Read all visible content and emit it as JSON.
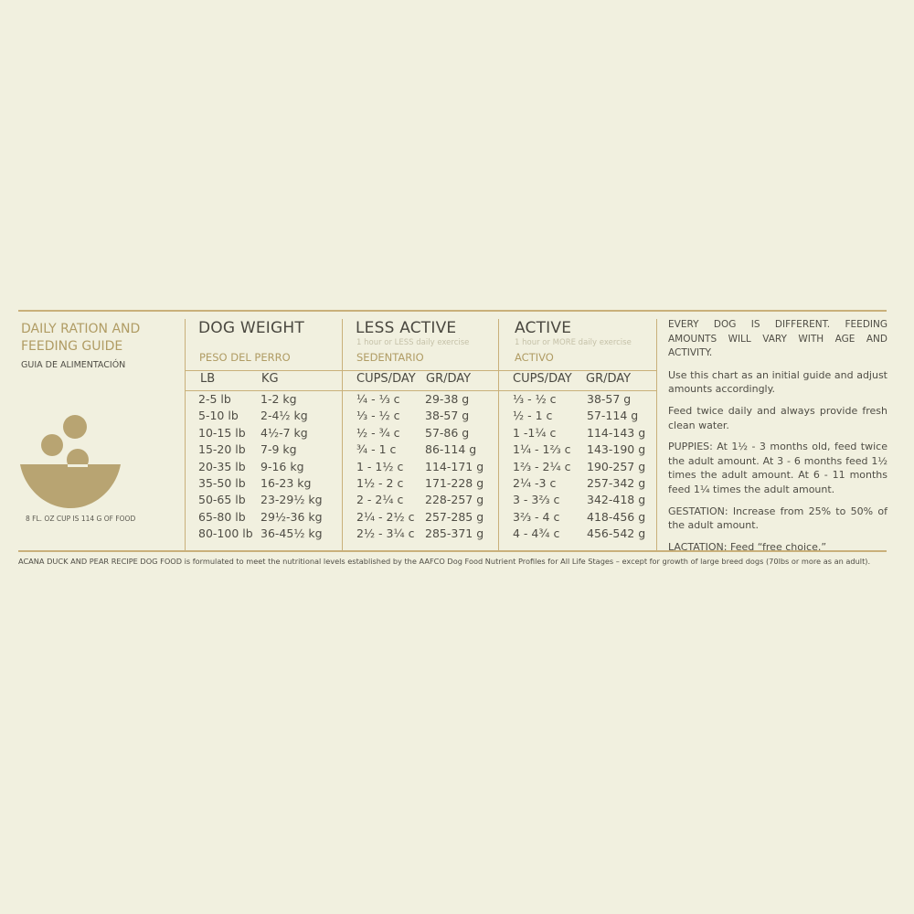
{
  "left": {
    "title": "DAILY RATION AND FEEDING GUIDE",
    "subtitle": "GUIA DE ALIMENTACIÓN",
    "cup_note": "8 FL. OZ CUP IS 114 G OF FOOD"
  },
  "columns": {
    "weight": {
      "title": "DOG WEIGHT",
      "spanish": "PESO DEL PERRO",
      "h1": "LB",
      "h2": "KG"
    },
    "less_active": {
      "title": "LESS ACTIVE",
      "note": "1 hour or LESS daily exercise",
      "spanish": "SEDENTARIO",
      "h1": "CUPS/DAY",
      "h2": "GR/DAY"
    },
    "active": {
      "title": "ACTIVE",
      "note": "1 hour or MORE daily exercise",
      "spanish": "ACTIVO",
      "h1": "CUPS/DAY",
      "h2": "GR/DAY"
    }
  },
  "rows": [
    [
      "2-5 lb",
      "1-2 kg",
      "¼ - ⅓ c",
      "29-38 g",
      "⅓ - ½ c",
      "38-57 g"
    ],
    [
      "5-10 lb",
      "2-4½ kg",
      "⅓ - ½ c",
      "38-57 g",
      "½ - 1 c",
      "57-114 g"
    ],
    [
      "10-15 lb",
      "4½-7 kg",
      "½ - ¾ c",
      "57-86 g",
      "1 -1¼ c",
      "114-143 g"
    ],
    [
      "15-20 lb",
      "7-9 kg",
      "¾ - 1 c",
      "86-114 g",
      "1¼ - 1⅔ c",
      "143-190 g"
    ],
    [
      "20-35 lb",
      "9-16 kg",
      "1 - 1½ c",
      "114-171 g",
      "1⅔ - 2¼ c",
      "190-257 g"
    ],
    [
      "35-50 lb",
      "16-23 kg",
      "1½ - 2 c",
      "171-228 g",
      "2¼ -3 c",
      "257-342 g"
    ],
    [
      "50-65 lb",
      "23-29½ kg",
      "2 - 2¼ c",
      "228-257 g",
      "3 - 3⅔ c",
      "342-418 g"
    ],
    [
      "65-80 lb",
      "29½-36 kg",
      "2¼ - 2½ c",
      "257-285 g",
      "3⅔ - 4 c",
      "418-456 g"
    ],
    [
      "80-100 lb",
      "36-45½ kg",
      "2½ - 3¼ c",
      "285-371 g",
      "4 - 4¾ c",
      "456-542 g"
    ]
  ],
  "right": {
    "p1": "EVERY DOG IS DIFFERENT. FEEDING AMOUNTS WILL VARY WITH AGE AND ACTIVITY.",
    "p2": "Use this chart as an initial guide and adjust amounts accordingly.",
    "p3": "Feed twice daily and always provide fresh clean water.",
    "p4": "PUPPIES: At 1½ - 3 months old, feed twice the adult amount. At 3 - 6 months feed 1½ times the adult amount. At 6 - 11 months feed 1¼ times the adult amount.",
    "p5": "GESTATION: Increase from 25% to 50% of the adult amount.",
    "p6": "LACTATION: Feed “free choice.”"
  },
  "footnote": "ACANA DUCK AND PEAR RECIPE DOG FOOD is formulated to meet the nutritional levels established by the AAFCO Dog Food Nutrient Profiles for All Life Stages – except for growth of large breed dogs (70lbs or more as an adult).",
  "colors": {
    "background": "#f1f0df",
    "gold": "#c9b07a",
    "gold_text": "#b09c64",
    "bowl": "#b8a472"
  }
}
